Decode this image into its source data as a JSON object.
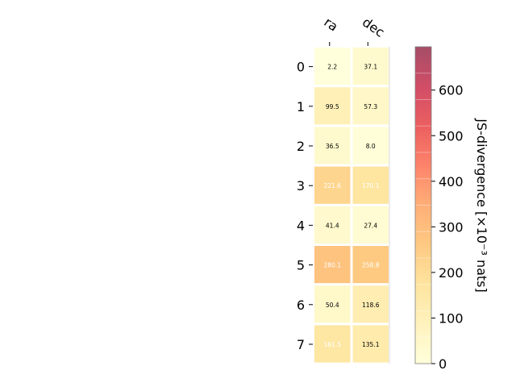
{
  "chart_data": {
    "type": "heatmap",
    "title": "",
    "columns": [
      "ra",
      "dec"
    ],
    "rows": [
      "0",
      "1",
      "2",
      "3",
      "4",
      "5",
      "6",
      "7"
    ],
    "values": [
      [
        2.2,
        37.1
      ],
      [
        99.5,
        57.3
      ],
      [
        36.5,
        8.0
      ],
      [
        221.6,
        170.1
      ],
      [
        41.4,
        27.4
      ],
      [
        280.1,
        258.8
      ],
      [
        50.4,
        118.6
      ],
      [
        161.5,
        135.1
      ]
    ],
    "cell_labels": [
      [
        "2.2",
        "37.1"
      ],
      [
        "99.5",
        "57.3"
      ],
      [
        "36.5",
        "8.0"
      ],
      [
        "221.6",
        "170.1"
      ],
      [
        "41.4",
        "27.4"
      ],
      [
        "280.1",
        "258.8"
      ],
      [
        "50.4",
        "118.6"
      ],
      [
        "161.5",
        "135.1"
      ]
    ],
    "colorbar": {
      "label": "JS-divergence [×10⁻³ nats]",
      "vmin": 0,
      "vmax": 695,
      "ticks": [
        "0",
        "100",
        "200",
        "300",
        "400",
        "500",
        "600"
      ],
      "colormap": "YlOrRd",
      "colors": [
        "#ffffcc",
        "#ffeda0",
        "#fed976",
        "#feb24c",
        "#fd8d3c",
        "#fc4e2a",
        "#e31a1c",
        "#bd0026",
        "#800026"
      ]
    },
    "cell_alpha": 0.7,
    "label_color_dark": "#000000",
    "label_color_light": "#ffffff",
    "light_label_threshold": 150
  }
}
